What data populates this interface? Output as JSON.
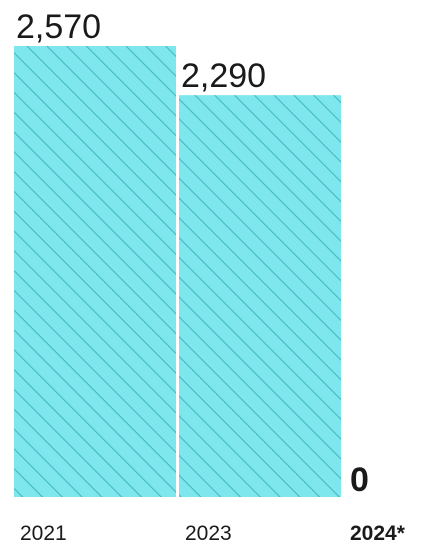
{
  "chart_data": {
    "type": "bar",
    "categories": [
      "2021",
      "2023",
      "2024*"
    ],
    "values": [
      2570,
      2290,
      0
    ],
    "value_labels": [
      "2,570",
      "2,290",
      "0"
    ],
    "emphasized": [
      false,
      false,
      true
    ],
    "bar_color": "#7ee7ee",
    "hatch_color": "#43b9c2",
    "title": "",
    "xlabel": "",
    "ylabel": "",
    "ylim": [
      0,
      2570
    ],
    "grid": false,
    "legend": "none"
  }
}
